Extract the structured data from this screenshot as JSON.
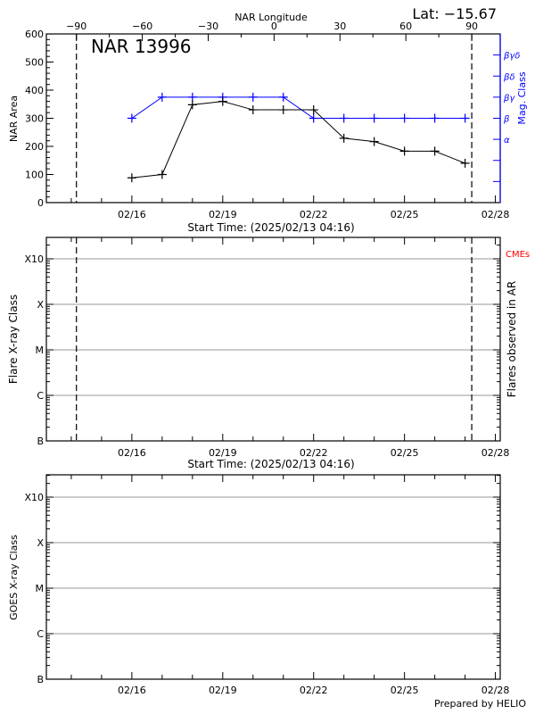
{
  "header": {
    "lat_label": "Lat: −15.67",
    "region_label": "NAR 13996",
    "longitude_axis_label": "NAR Longitude"
  },
  "footer": {
    "credit": "Prepared by HELIO"
  },
  "colors": {
    "area": "#000000",
    "mag": "#0000ff",
    "cme": "#ff0000",
    "grid": "#999999"
  },
  "chart_data": [
    {
      "type": "line",
      "title": "NAR 13996",
      "xlabel": "Start Time: (2025/02/13 04:16)",
      "ylabel": "NAR Area",
      "y2label": "Mag. Class",
      "x_unit": "day of Feb 2025",
      "xlim": [
        13.178,
        28.16
      ],
      "ylim": [
        0,
        600
      ],
      "y2lim": [
        0,
        8
      ],
      "x_ticks": [
        {
          "v": 16,
          "label": "02/16"
        },
        {
          "v": 19,
          "label": "02/19"
        },
        {
          "v": 22,
          "label": "02/22"
        },
        {
          "v": 25,
          "label": "02/25"
        },
        {
          "v": 28,
          "label": "02/28"
        }
      ],
      "y_ticks": [
        0,
        100,
        200,
        300,
        400,
        500,
        600
      ],
      "y2_ticks": [
        {
          "v": 1,
          "label": ""
        },
        {
          "v": 2,
          "label": ""
        },
        {
          "v": 3,
          "label": "α"
        },
        {
          "v": 4,
          "label": "β"
        },
        {
          "v": 5,
          "label": "βγ"
        },
        {
          "v": 6,
          "label": "βδ"
        },
        {
          "v": 7,
          "label": "βγδ"
        }
      ],
      "top_axis": {
        "label": "NAR Longitude",
        "ticks": [
          -90,
          -60,
          -30,
          0,
          30,
          60,
          90
        ],
        "day_at_minus90": 14.17,
        "day_at_plus90": 27.22
      },
      "limb_lines_days": [
        14.17,
        27.22
      ],
      "series": [
        {
          "name": "NAR Area",
          "x": [
            16,
            17,
            18,
            19,
            20,
            21,
            22,
            23,
            24,
            25,
            26,
            27
          ],
          "values": [
            88,
            100,
            348,
            360,
            330,
            330,
            330,
            229,
            217,
            183,
            183,
            140
          ]
        },
        {
          "name": "Mag. Class",
          "x": [
            16,
            17,
            18,
            19,
            20,
            21,
            22,
            23,
            24,
            25,
            26,
            27
          ],
          "values": [
            4,
            5,
            5,
            5,
            5,
            5,
            4,
            4,
            4,
            4,
            4,
            4
          ],
          "value_labels": [
            "β",
            "βγ",
            "βγ",
            "βγ",
            "βγ",
            "βγ",
            "β",
            "β",
            "β",
            "β",
            "β",
            "β"
          ]
        }
      ]
    },
    {
      "type": "scatter",
      "xlabel": "Start Time: (2025/02/13 04:16)",
      "ylabel": "Flare X-ray Class",
      "y2label": "Flares observed in AR",
      "legend": "CMEs",
      "xlim": [
        13.178,
        28.16
      ],
      "ylim": [
        0,
        4.47
      ],
      "x_ticks": [
        {
          "v": 16,
          "label": "02/16"
        },
        {
          "v": 19,
          "label": "02/19"
        },
        {
          "v": 22,
          "label": "02/22"
        },
        {
          "v": 25,
          "label": "02/25"
        },
        {
          "v": 28,
          "label": "02/28"
        }
      ],
      "y_ticks": [
        {
          "v": 0,
          "label": "B"
        },
        {
          "v": 1,
          "label": "C"
        },
        {
          "v": 2,
          "label": "M"
        },
        {
          "v": 3,
          "label": "X"
        },
        {
          "v": 4,
          "label": "X10"
        }
      ],
      "limb_lines_days": [
        14.17,
        27.22
      ],
      "series": []
    },
    {
      "type": "line",
      "ylabel": "GOES X-ray Class",
      "xlim": [
        13.178,
        28.16
      ],
      "ylim": [
        0,
        4.49
      ],
      "x_ticks": [
        {
          "v": 16,
          "label": "02/16"
        },
        {
          "v": 19,
          "label": "02/19"
        },
        {
          "v": 22,
          "label": "02/22"
        },
        {
          "v": 25,
          "label": "02/25"
        },
        {
          "v": 28,
          "label": "02/28"
        }
      ],
      "y_ticks": [
        {
          "v": 0,
          "label": "B"
        },
        {
          "v": 1,
          "label": "C"
        },
        {
          "v": 2,
          "label": "M"
        },
        {
          "v": 3,
          "label": "X"
        },
        {
          "v": 4,
          "label": "X10"
        }
      ],
      "series": []
    }
  ]
}
